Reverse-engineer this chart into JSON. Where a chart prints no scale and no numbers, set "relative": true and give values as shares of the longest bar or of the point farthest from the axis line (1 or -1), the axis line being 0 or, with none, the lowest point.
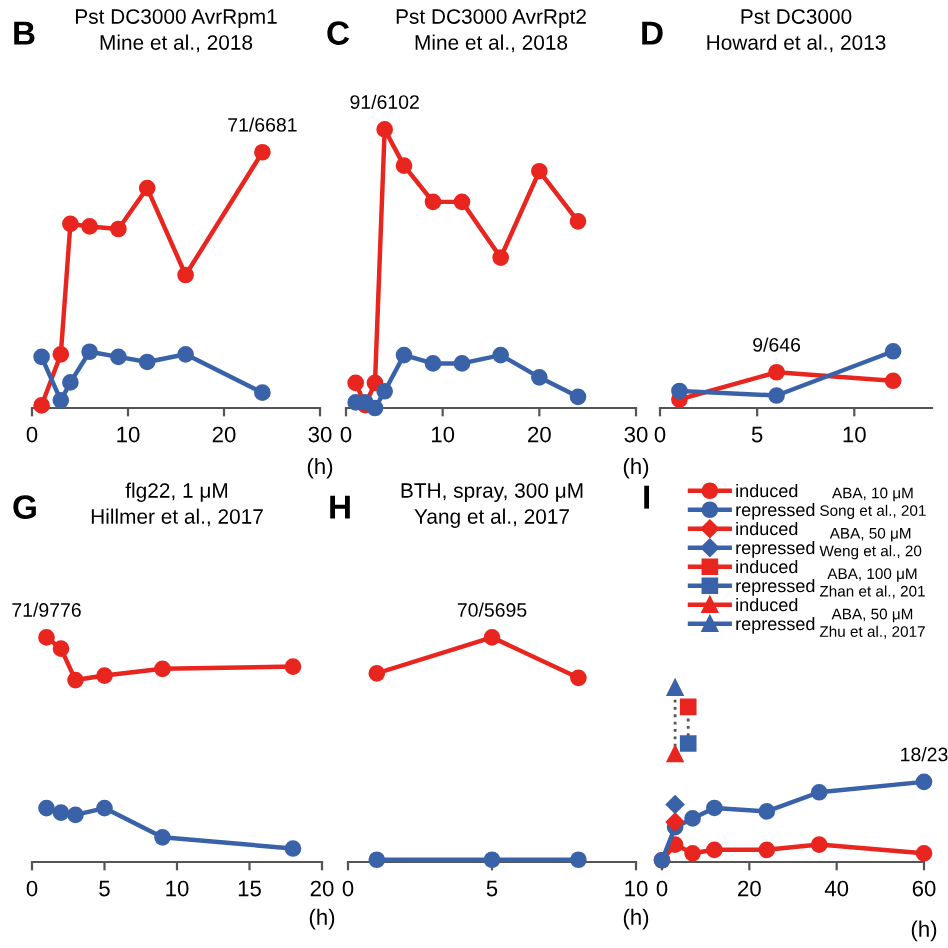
{
  "chart_data": [
    {
      "type": "line",
      "relative": true,
      "title": "Pst DC3000 AvrRpm1",
      "subtitle": "Mine et al., 2018",
      "xlabel": "(h)",
      "xlim": [
        0,
        30
      ],
      "xticks": [
        0,
        10,
        20,
        30
      ],
      "marker": "circle",
      "grid": false,
      "legend": false,
      "annotations": [
        "B",
        {
          "text": "71/6681",
          "x": 24,
          "y": 1
        }
      ],
      "series": [
        {
          "color": "#e8251e",
          "x": [
            1,
            3,
            4,
            6,
            9,
            12,
            16,
            24
          ],
          "values": [
            0.01,
            0.21,
            0.72,
            0.71,
            0.7,
            0.86,
            0.52,
            1
          ]
        },
        {
          "color": "#3a62a8",
          "x": [
            1,
            3,
            4,
            6,
            9,
            12,
            16,
            24
          ],
          "values": [
            0.2,
            0.03,
            0.1,
            0.22,
            0.2,
            0.18,
            0.21,
            0.06
          ]
        }
      ]
    },
    {
      "type": "line",
      "relative": true,
      "title": "Pst DC3000 AvrRpt2",
      "subtitle": "Mine et al., 2018",
      "xlabel": "(h)",
      "xlim": [
        0,
        30
      ],
      "xticks": [
        0,
        10,
        20,
        30
      ],
      "marker": "circle",
      "grid": false,
      "legend": false,
      "annotations": [
        "C",
        {
          "text": "91/6102",
          "x": 4,
          "y": 1
        }
      ],
      "series": [
        {
          "color": "#e8251e",
          "x": [
            1,
            2,
            3,
            4,
            6,
            9,
            12,
            16,
            20,
            24
          ],
          "values": [
            0.09,
            0.01,
            0.09,
            1,
            0.87,
            0.74,
            0.74,
            0.54,
            0.85,
            0.67
          ]
        },
        {
          "color": "#3a62a8",
          "x": [
            1,
            2,
            3,
            4,
            6,
            9,
            12,
            16,
            20,
            24
          ],
          "values": [
            0.02,
            0.02,
            0,
            0.06,
            0.19,
            0.16,
            0.16,
            0.19,
            0.11,
            0.04
          ]
        }
      ]
    },
    {
      "type": "line",
      "relative": true,
      "title": "Pst DC3000",
      "subtitle": "Howard et al., 2013",
      "xlim": [
        0,
        14
      ],
      "xticks": [
        0,
        5,
        10
      ],
      "marker": "circle",
      "grid": false,
      "legend": false,
      "annotations": [
        "D",
        {
          "text": "9/646",
          "x": 6,
          "y": 0.63
        }
      ],
      "series": [
        {
          "color": "#e8251e",
          "x": [
            1,
            6,
            12
          ],
          "values": [
            0.15,
            0.63,
            0.48
          ]
        },
        {
          "color": "#3a62a8",
          "x": [
            1,
            6,
            12
          ],
          "values": [
            0.3,
            0.22,
            1
          ]
        }
      ]
    },
    {
      "type": "line",
      "relative": true,
      "title": "flg22, 1 μM",
      "subtitle": "Hillmer et al., 2017",
      "xlabel": "(h)",
      "xlim": [
        0,
        20
      ],
      "xticks": [
        0,
        5,
        10,
        15,
        20
      ],
      "marker": "circle",
      "grid": false,
      "legend": false,
      "annotations": [
        "G",
        {
          "text": "71/9776",
          "x": 1,
          "y": 1
        }
      ],
      "series": [
        {
          "color": "#e8251e",
          "x": [
            1,
            2,
            3,
            5,
            9,
            18
          ],
          "values": [
            1,
            0.95,
            0.81,
            0.83,
            0.86,
            0.87
          ]
        },
        {
          "color": "#3a62a8",
          "x": [
            1,
            2,
            3,
            5,
            9,
            18
          ],
          "values": [
            0.24,
            0.22,
            0.21,
            0.24,
            0.11,
            0.06
          ]
        }
      ]
    },
    {
      "type": "line",
      "relative": true,
      "title": "BTH, spray, 300 μM",
      "subtitle": "Yang et al., 2017",
      "xlabel": "(h)",
      "xlim": [
        0,
        10
      ],
      "xticks": [
        0,
        5,
        10
      ],
      "marker": "circle",
      "grid": false,
      "legend": false,
      "annotations": [
        "H",
        {
          "text": "70/5695",
          "x": 5,
          "y": 1
        }
      ],
      "series": [
        {
          "color": "#e8251e",
          "x": [
            1,
            5,
            8
          ],
          "values": [
            0.84,
            1,
            0.82
          ]
        },
        {
          "color": "#3a62a8",
          "x": [
            1,
            5,
            8
          ],
          "values": [
            0.01,
            0.01,
            0.01
          ]
        }
      ]
    },
    {
      "type": "line",
      "relative": true,
      "xlabel": "(h)",
      "xlim": [
        0,
        60
      ],
      "xticks": [
        0,
        20,
        40,
        60
      ],
      "grid": false,
      "legend": "top left",
      "annotations": [
        "I",
        "ABA, 10 μM\nSong et al., 201",
        "ABA, 50 μM\nWeng et al., 20",
        "ABA, 100 μM\nZhan et al., 201",
        "ABA, 50 μM\nZhu et al., 2017",
        {
          "text": "18/23",
          "x": 60,
          "y": 0.46
        }
      ],
      "series": [
        {
          "color": "#555555",
          "x": [
            3,
            3
          ],
          "values": [
            0.62,
            1
          ],
          "line_style": "dotted",
          "marker": "none"
        },
        {
          "color": "#555555",
          "x": [
            6,
            6
          ],
          "values": [
            0.68,
            0.89
          ],
          "line_style": "dotted",
          "marker": "none"
        },
        {
          "name": "induced",
          "color": "#e8251e",
          "marker": "circle",
          "x": [
            0,
            3,
            7,
            12,
            24,
            36,
            60
          ],
          "values": [
            0.01,
            0.1,
            0.05,
            0.07,
            0.07,
            0.1,
            0.05
          ]
        },
        {
          "name": "repressed",
          "color": "#3a62a8",
          "marker": "circle",
          "x": [
            0,
            3,
            7,
            12,
            24,
            36,
            60
          ],
          "values": [
            0.01,
            0.2,
            0.25,
            0.31,
            0.29,
            0.4,
            0.46
          ]
        },
        {
          "name": "induced",
          "color": "#e8251e",
          "marker": "diamond",
          "x": [
            3
          ],
          "values": [
            0.23
          ]
        },
        {
          "name": "repressed",
          "color": "#3a62a8",
          "marker": "diamond",
          "x": [
            3
          ],
          "values": [
            0.33
          ]
        },
        {
          "name": "induced",
          "color": "#e8251e",
          "marker": "square",
          "x": [
            6
          ],
          "values": [
            0.89
          ]
        },
        {
          "name": "repressed",
          "color": "#3a62a8",
          "marker": "square",
          "x": [
            6
          ],
          "values": [
            0.68
          ]
        },
        {
          "name": "induced",
          "color": "#e8251e",
          "marker": "triangle",
          "x": [
            3
          ],
          "values": [
            0.62
          ]
        },
        {
          "name": "repressed",
          "color": "#3a62a8",
          "marker": "triangle",
          "x": [
            3
          ],
          "values": [
            1
          ]
        }
      ]
    }
  ]
}
